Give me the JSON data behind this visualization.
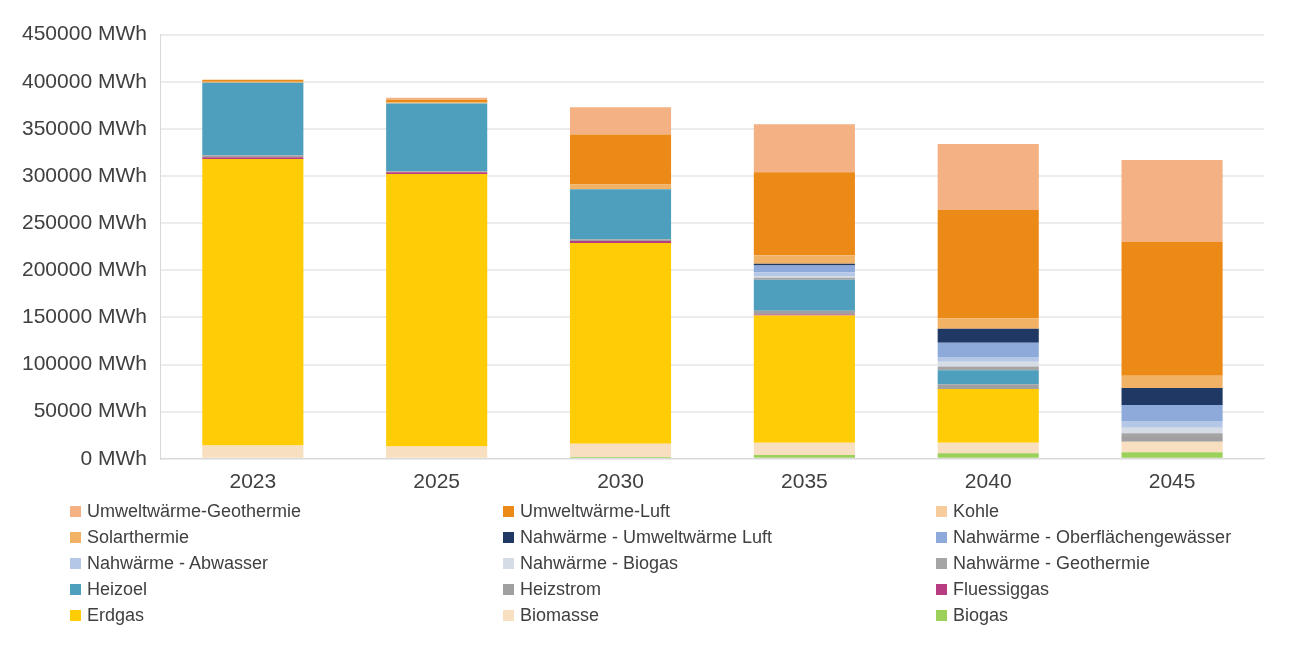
{
  "chart_data": {
    "type": "bar",
    "stacked": true,
    "categories": [
      "2023",
      "2025",
      "2030",
      "2035",
      "2040",
      "2045"
    ],
    "ylim": [
      0,
      450000
    ],
    "yticks": [
      {
        "value": 0,
        "label": "0 MWh"
      },
      {
        "value": 50000,
        "label": "50000 MWh"
      },
      {
        "value": 100000,
        "label": "100000 MWh"
      },
      {
        "value": 150000,
        "label": "150000 MWh"
      },
      {
        "value": 200000,
        "label": "200000 MWh"
      },
      {
        "value": 250000,
        "label": "250000 MWh"
      },
      {
        "value": 300000,
        "label": "300000 MWh"
      },
      {
        "value": 350000,
        "label": "350000 MWh"
      },
      {
        "value": 400000,
        "label": "400000 MWh"
      },
      {
        "value": 450000,
        "label": "450000 MWh"
      }
    ],
    "grid": "y",
    "legend": "bottom",
    "series": [
      {
        "name": "Biogas",
        "color": "#9bd05a",
        "values": [
          0,
          0,
          2000,
          4000,
          6000,
          7000
        ]
      },
      {
        "name": "Biomasse",
        "color": "#f8dfc0",
        "values": [
          14000,
          13000,
          14000,
          13000,
          11000,
          11000
        ]
      },
      {
        "name": "Erdgas",
        "color": "#ffcc05",
        "values": [
          304000,
          289000,
          213000,
          135000,
          57000,
          0
        ]
      },
      {
        "name": "Fluessiggas",
        "color": "#b83c80",
        "values": [
          2000,
          2000,
          2000,
          1000,
          0,
          0
        ]
      },
      {
        "name": "Heizstrom",
        "color": "#a0a0a0",
        "values": [
          2000,
          1000,
          2000,
          4000,
          5000,
          5000
        ]
      },
      {
        "name": "Heizoel",
        "color": "#4d9fbd",
        "values": [
          77000,
          72000,
          53000,
          33000,
          15000,
          0
        ]
      },
      {
        "name": "Nahwärme - Geothermie",
        "color": "#a5a5a5",
        "values": [
          0,
          0,
          0,
          2000,
          4000,
          4000
        ]
      },
      {
        "name": "Nahwärme - Biogas",
        "color": "#d6dce5",
        "values": [
          0,
          0,
          0,
          2000,
          5000,
          6000
        ]
      },
      {
        "name": "Nahwärme - Abwasser",
        "color": "#b4c7e7",
        "values": [
          0,
          0,
          0,
          4000,
          5000,
          7000
        ]
      },
      {
        "name": "Nahwärme - Oberflächengewässer",
        "color": "#8eaadb",
        "values": [
          0,
          0,
          0,
          7000,
          15000,
          17000
        ]
      },
      {
        "name": "Nahwärme - Umweltwärme Luft",
        "color": "#203864",
        "values": [
          0,
          0,
          0,
          2000,
          15000,
          18000
        ]
      },
      {
        "name": "Solarthermie",
        "color": "#f2b266",
        "values": [
          1000,
          1000,
          5000,
          9000,
          11000,
          13000
        ]
      },
      {
        "name": "Kohle",
        "color": "#f8cb9c",
        "values": [
          0,
          0,
          0,
          0,
          0,
          0
        ]
      },
      {
        "name": "Umweltwärme-Luft",
        "color": "#ec8a17",
        "values": [
          2000,
          3000,
          53000,
          88000,
          115000,
          142000
        ]
      },
      {
        "name": "Umweltwärme-Geothermie",
        "color": "#f4b183",
        "values": [
          0,
          2000,
          29000,
          51000,
          70000,
          87000
        ]
      }
    ]
  }
}
